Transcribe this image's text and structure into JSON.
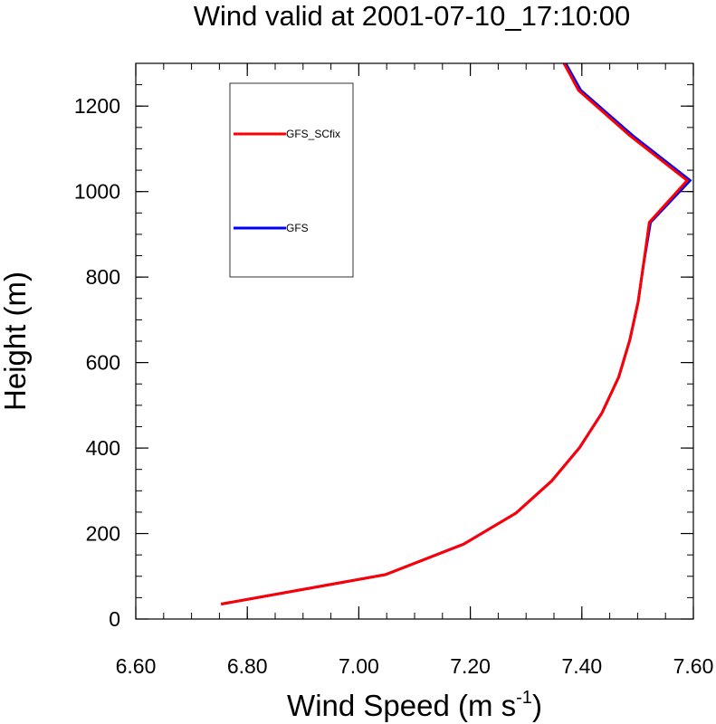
{
  "chart_data": {
    "type": "line",
    "title": "Wind valid at 2001-07-10_17:10:00",
    "xlabel": "Wind Speed (m s",
    "xlabel_sup": "-1",
    "xlabel_close": ")",
    "ylabel": "Height (m)",
    "xlim": [
      6.6,
      7.6
    ],
    "ylim": [
      0,
      1300
    ],
    "xticks": [
      6.6,
      6.8,
      7.0,
      7.2,
      7.4,
      7.6
    ],
    "xtick_labels": [
      "6.60",
      "6.80",
      "7.00",
      "7.20",
      "7.40",
      "7.60"
    ],
    "yticks": [
      0,
      200,
      400,
      600,
      800,
      1000,
      1200
    ],
    "ytick_labels": [
      "0",
      "200",
      "400",
      "600",
      "800",
      "1000",
      "1200"
    ],
    "grid": false,
    "legend_placement": "top-left",
    "series": [
      {
        "name": "GFS",
        "color": "#0000ff",
        "points": [
          [
            6.753,
            35
          ],
          [
            7.048,
            104
          ],
          [
            7.188,
            175
          ],
          [
            7.282,
            248
          ],
          [
            7.346,
            323
          ],
          [
            7.396,
            401
          ],
          [
            7.436,
            482
          ],
          [
            7.466,
            566
          ],
          [
            7.486,
            653
          ],
          [
            7.501,
            742
          ],
          [
            7.511,
            834
          ],
          [
            7.523,
            928
          ],
          [
            7.594,
            1026
          ],
          [
            7.491,
            1131
          ],
          [
            7.398,
            1237
          ],
          [
            7.371,
            1300
          ]
        ]
      },
      {
        "name": "GFS_SCfix",
        "color": "#ff0000",
        "points": [
          [
            6.753,
            35
          ],
          [
            7.048,
            104
          ],
          [
            7.188,
            175
          ],
          [
            7.282,
            248
          ],
          [
            7.346,
            323
          ],
          [
            7.396,
            401
          ],
          [
            7.436,
            482
          ],
          [
            7.466,
            566
          ],
          [
            7.486,
            653
          ],
          [
            7.501,
            742
          ],
          [
            7.511,
            834
          ],
          [
            7.521,
            928
          ],
          [
            7.589,
            1026
          ],
          [
            7.486,
            1131
          ],
          [
            7.394,
            1237
          ],
          [
            7.368,
            1300
          ]
        ]
      }
    ],
    "legend_order": [
      "GFS_SCfix",
      "GFS"
    ]
  }
}
